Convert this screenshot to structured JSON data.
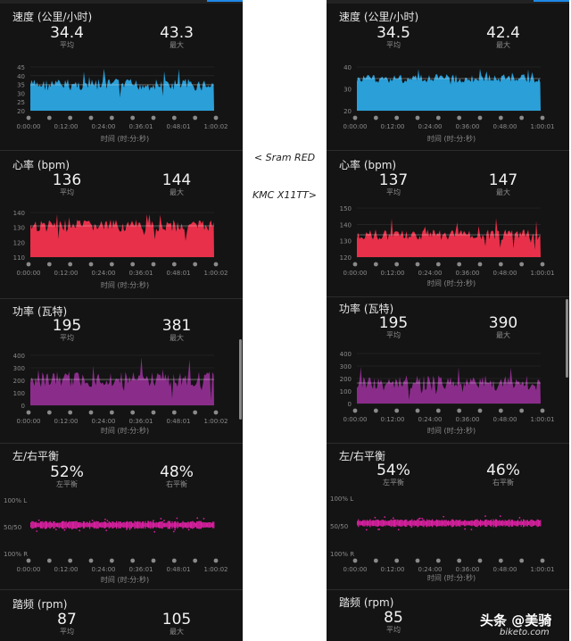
{
  "left": {
    "speed": {
      "title": "速度 (公里/小时)",
      "avg": "34.4",
      "avg_label": "平均",
      "max": "43.3",
      "max_label": "最大",
      "yticks": [
        "45",
        "40",
        "35",
        "30",
        "25",
        "20"
      ],
      "xticks": [
        "0:00:00",
        "0:12:00",
        "0:24:00",
        "0:36:01",
        "0:48:01",
        "1:00:02"
      ],
      "xtitle": "时间 (时:分:秒)"
    },
    "heart": {
      "title": "心率 (bpm)",
      "avg": "136",
      "avg_label": "平均",
      "max": "144",
      "max_label": "最大",
      "yticks": [
        "140",
        "130",
        "120",
        "110"
      ],
      "xticks": [
        "0:00:00",
        "0:12:00",
        "0:24:00",
        "0:36:01",
        "0:48:01",
        "1:00:02"
      ],
      "xtitle": "时间 (时:分:秒)"
    },
    "power": {
      "title": "功率 (瓦特)",
      "avg": "195",
      "avg_label": "平均",
      "max": "381",
      "max_label": "最大",
      "yticks": [
        "400",
        "300",
        "200",
        "100",
        "0"
      ],
      "xticks": [
        "0:00:00",
        "0:12:00",
        "0:24:00",
        "0:36:01",
        "0:48:01",
        "1:00:02"
      ],
      "xtitle": "时间 (时:分:秒)"
    },
    "balance": {
      "title": "左/右平衡",
      "avg": "52%",
      "avg_label": "左平衡",
      "max": "48%",
      "max_label": "右平衡",
      "yticks": [
        "100% L",
        "50/50",
        "100% R"
      ],
      "xticks": [
        "0:00:00",
        "0:12:00",
        "0:24:00",
        "0:36:01",
        "0:48:01",
        "1:00:02"
      ],
      "xtitle": "时间 (时:分:秒)"
    },
    "cadence": {
      "title": "踏频 (rpm)",
      "avg": "87",
      "avg_label": "平均",
      "max": "105",
      "max_label": "最大"
    }
  },
  "right": {
    "speed": {
      "title": "速度 (公里/小时)",
      "avg": "34.5",
      "avg_label": "平均",
      "max": "42.4",
      "max_label": "最大",
      "yticks": [
        "40",
        "30",
        "20"
      ],
      "xticks": [
        "0:00:00",
        "0:12:00",
        "0:24:00",
        "0:36:00",
        "0:48:00",
        "1:00:01"
      ],
      "xtitle": "时间 (时:分:秒)"
    },
    "heart": {
      "title": "心率 (bpm)",
      "avg": "137",
      "avg_label": "平均",
      "max": "147",
      "max_label": "最大",
      "yticks": [
        "150",
        "140",
        "130",
        "120"
      ],
      "xticks": [
        "0:00:00",
        "0:12:00",
        "0:24:00",
        "0:36:00",
        "0:48:00",
        "1:00:01"
      ],
      "xtitle": "时间 (时:分:秒)"
    },
    "power": {
      "title": "功率 (瓦特)",
      "avg": "195",
      "avg_label": "平均",
      "max": "390",
      "max_label": "最大",
      "yticks": [
        "400",
        "300",
        "200",
        "100",
        "0"
      ],
      "xticks": [
        "0:00:00",
        "0:12:00",
        "0:24:00",
        "0:36:00",
        "0:48:00",
        "1:00:01"
      ],
      "xtitle": "时间 (时:分:秒)"
    },
    "balance": {
      "title": "左/右平衡",
      "avg": "54%",
      "avg_label": "左平衡",
      "max": "46%",
      "max_label": "右平衡",
      "yticks": [
        "100% L",
        "50/50",
        "100% R"
      ],
      "xticks": [
        "0:00:00",
        "0:12:00",
        "0:24:00",
        "0:36:00",
        "0:48:00",
        "1:00:01"
      ],
      "xtitle": "时间 (时:分:秒)"
    },
    "cadence": {
      "title": "踏频 (rpm)",
      "avg": "85",
      "avg_label": "平均"
    }
  },
  "middle": {
    "label_top": "< Sram RED",
    "label_bottom": "KMC X11TT>"
  },
  "watermark": {
    "text": "头条 @美骑",
    "site": "biketo.com"
  },
  "colors": {
    "speed": "#2a9fd8",
    "heart": "#e8304a",
    "power": "#8a2d8a",
    "balance": "#d6209e"
  }
}
